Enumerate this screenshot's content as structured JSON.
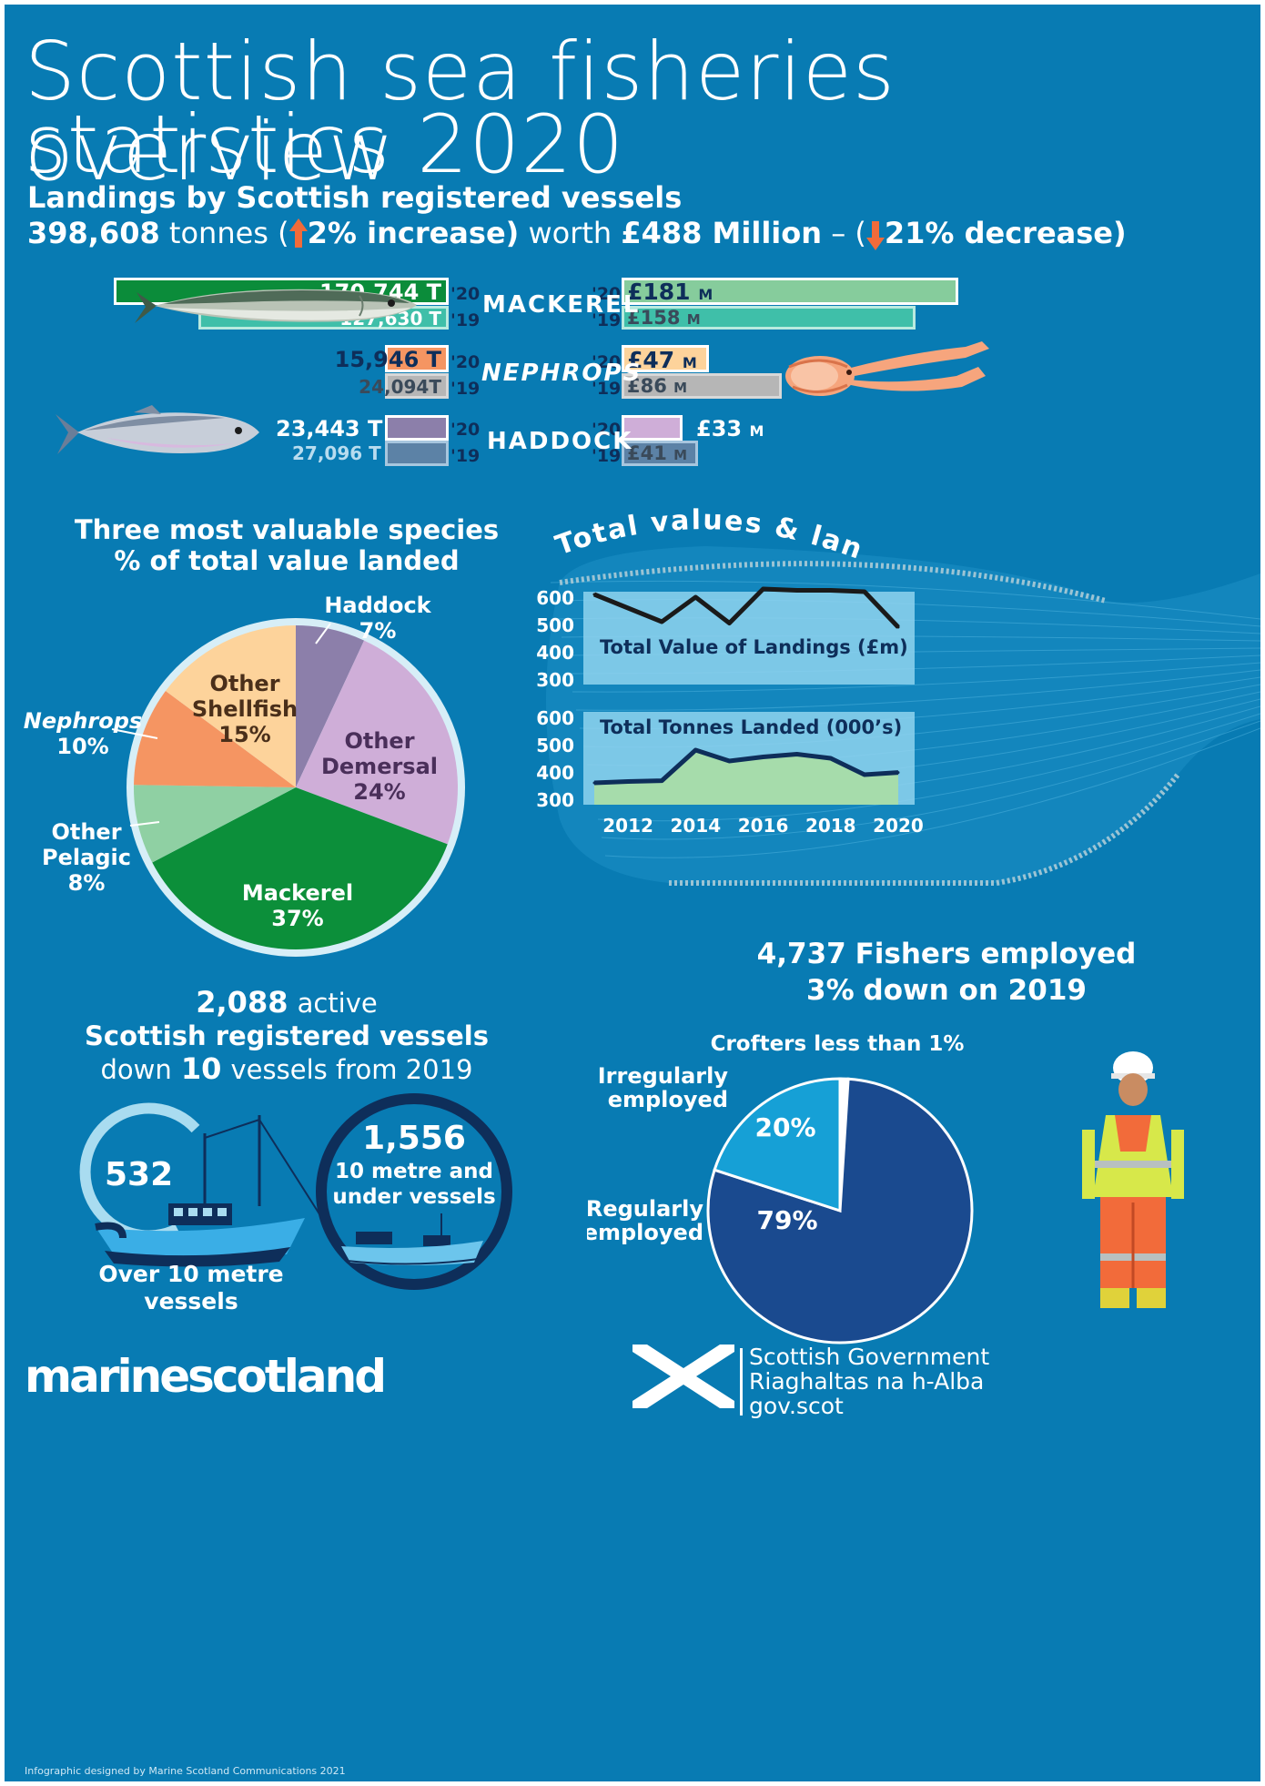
{
  "title_line1": "Scottish sea fisheries overview",
  "title_line2": "statistics 2020",
  "landings": {
    "heading": "Landings by Scottish registered vessels",
    "tonnes": "398,608",
    "tonnes_word": "tonnes (",
    "tonnes_change": "2% increase)",
    "worth_word": "worth",
    "value": "£488 Million",
    "value_sep": "– (",
    "value_change": "21% decrease)"
  },
  "species_bars": [
    {
      "name": "MACKEREL",
      "t20": "170,744 T",
      "t19": "127,630 T",
      "v20": "£181",
      "v19": "£158",
      "unit": "M",
      "t20_val": 170744,
      "t19_val": 127630,
      "v20_val": 181,
      "v19_val": 158
    },
    {
      "name": "NEPHROPS",
      "t20": "15,946 T",
      "t19": "24,094T",
      "v20": "£47",
      "v19": "£86",
      "unit": "M",
      "t20_val": 15946,
      "t19_val": 24094,
      "v20_val": 47,
      "v19_val": 86
    },
    {
      "name": "HADDOCK",
      "t20": "23,443 T",
      "t19": "27,096 T",
      "v20": "£33",
      "v19": "£41",
      "unit": "M",
      "t20_val": 23443,
      "t19_val": 27096,
      "v20_val": 33,
      "v19_val": 41
    }
  ],
  "year_labels": {
    "y20": "'20",
    "y19": "'19"
  },
  "pie": {
    "title_line1": "Three most valuable species",
    "title_line2": "% of total value landed"
  },
  "totals_title": "Total values & landings",
  "line_chart": {
    "value_label": "Total Value of Landings (£m)",
    "tonnes_label": "Total Tonnes Landed (000’s)"
  },
  "vessels": {
    "count": "2,088",
    "count_word": "active",
    "line2": "Scottish registered vessels",
    "line3_pre": "down",
    "line3_num": "10",
    "line3_post": "vessels from 2019",
    "over_count": "532",
    "over_label_1": "Over 10 metre",
    "over_label_2": "vessels",
    "under_count": "1,556",
    "under_label_1": "10 metre and",
    "under_label_2": "under vessels"
  },
  "fishers": {
    "count": "4,737",
    "line1_post": "Fishers employed",
    "line2_num": "3%",
    "line2_post": "down on 2019",
    "crofters": "Crofters less than 1%",
    "irregular_1": "Irregularly",
    "irregular_2": "employed",
    "irregular_pct": "20%",
    "regular_1": "Regularly",
    "regular_2": "employed",
    "regular_pct": "79%"
  },
  "footer": {
    "brand": "marinescotland",
    "credit": "Infographic designed by Marine Scotland Communications 2021",
    "gov1": "Scottish Government",
    "gov2": "Riaghaltas na h-Alba",
    "gov3": "gov.scot"
  },
  "colors": {
    "background": "#087bb3",
    "mackerel": "#0b8c3a",
    "nephrops": "#f59562",
    "haddock": "#8c7faa",
    "up_arrow": "#f26b3a"
  },
  "chart_data": [
    {
      "type": "pie",
      "title": "Three most valuable species % of total value landed",
      "slices": [
        {
          "name": "Haddock",
          "value": 7,
          "label": "7%",
          "color": "#8c7faa"
        },
        {
          "name": "Other Demersal",
          "value": 24,
          "label": "24%",
          "color": "#cfaed8"
        },
        {
          "name": "Mackerel",
          "value": 37,
          "label": "37%",
          "color": "#0c8f3a"
        },
        {
          "name": "Other Pelagic",
          "value": 8,
          "label": "8%",
          "color": "#8fd0a3"
        },
        {
          "name": "Nephrops",
          "value": 10,
          "label": "10%",
          "color": "#f59562"
        },
        {
          "name": "Other Shellfish",
          "value": 15,
          "label": "15%",
          "color": "#fdd39b"
        }
      ]
    },
    {
      "type": "line",
      "title": "Total Value of Landings (£m)",
      "x": [
        2011,
        2012,
        2013,
        2014,
        2015,
        2016,
        2017,
        2018,
        2019,
        2020
      ],
      "y": [
        610,
        560,
        510,
        600,
        505,
        630,
        625,
        625,
        620,
        490
      ],
      "ylim": [
        300,
        600
      ],
      "yticks": [
        300,
        400,
        500,
        600
      ]
    },
    {
      "type": "area",
      "title": "Total Tonnes Landed (000’s)",
      "x": [
        2011,
        2012,
        2013,
        2014,
        2015,
        2016,
        2017,
        2018,
        2019,
        2020
      ],
      "y": [
        360,
        365,
        368,
        480,
        440,
        455,
        465,
        450,
        390,
        398
      ],
      "ylim": [
        300,
        600
      ],
      "yticks": [
        300,
        400,
        500,
        600
      ],
      "xticks": [
        2012,
        2014,
        2016,
        2018,
        2020
      ]
    },
    {
      "type": "pie",
      "title": "Fishers employed",
      "slices": [
        {
          "name": "Crofters",
          "value": 1,
          "label": "Crofters less than 1%",
          "color": "#ffffff"
        },
        {
          "name": "Regularly employed",
          "value": 79,
          "label": "79%",
          "color": "#1a4a8f"
        },
        {
          "name": "Irregularly employed",
          "value": 20,
          "label": "20%",
          "color": "#16a0d6"
        }
      ]
    }
  ]
}
